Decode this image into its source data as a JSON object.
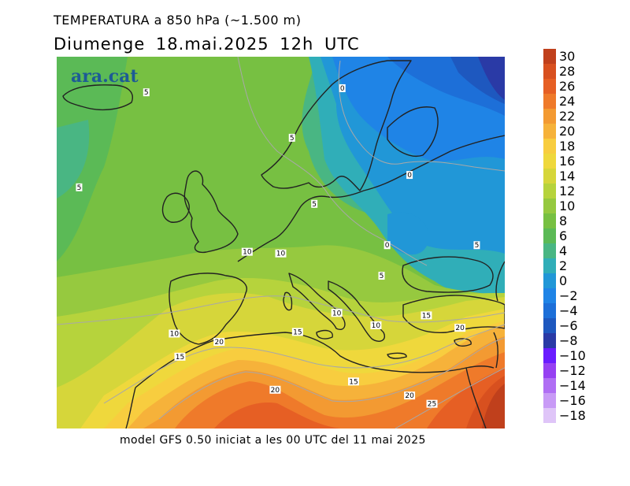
{
  "header": {
    "title": "TEMPERATURA a 850 hPa (~1.500 m)",
    "subtitle": "Diumenge  18.mai.2025  12h UTC"
  },
  "footer": {
    "text": "model GFS 0.50 iniciat a les 00 UTC del 11 mai 2025"
  },
  "logo": {
    "text": "ara.cat"
  },
  "legend": {
    "steps": [
      {
        "label": "30",
        "color": "#c0401c"
      },
      {
        "label": "28",
        "color": "#d8501f"
      },
      {
        "label": "26",
        "color": "#e65f24"
      },
      {
        "label": "24",
        "color": "#ef7a2a"
      },
      {
        "label": "22",
        "color": "#f39a32"
      },
      {
        "label": "20",
        "color": "#f6b23a"
      },
      {
        "label": "18",
        "color": "#f8cd3f"
      },
      {
        "label": "16",
        "color": "#efd83c"
      },
      {
        "label": "14",
        "color": "#d6d63a"
      },
      {
        "label": "12",
        "color": "#b6d33c"
      },
      {
        "label": "10",
        "color": "#96c93f"
      },
      {
        "label": "8",
        "color": "#77c042"
      },
      {
        "label": "6",
        "color": "#5bba56"
      },
      {
        "label": "4",
        "color": "#49b683"
      },
      {
        "label": "2",
        "color": "#30aeb8"
      },
      {
        "label": "0",
        "color": "#2197d7"
      },
      {
        "label": "−2",
        "color": "#1f84e6"
      },
      {
        "label": "−4",
        "color": "#1d6fd8"
      },
      {
        "label": "−6",
        "color": "#1e58bf"
      },
      {
        "label": "−8",
        "color": "#2a3aa6"
      },
      {
        "label": "−10",
        "color": "#6a1cff"
      },
      {
        "label": "−12",
        "color": "#9640f2"
      },
      {
        "label": "−14",
        "color": "#b06ef4"
      },
      {
        "label": "−16",
        "color": "#c89af6"
      },
      {
        "label": "−18",
        "color": "#dfc5f8"
      }
    ]
  },
  "map": {
    "contour_labels": [
      {
        "text": "0",
        "lon": 17,
        "lat": 65
      },
      {
        "text": "5",
        "lon": -18,
        "lat": 64.5
      },
      {
        "text": "5",
        "lon": 8,
        "lat": 59
      },
      {
        "text": "0",
        "lon": 29,
        "lat": 54.5
      },
      {
        "text": "5",
        "lon": -30,
        "lat": 53
      },
      {
        "text": "5",
        "lon": 12,
        "lat": 51
      },
      {
        "text": "0",
        "lon": 25,
        "lat": 46
      },
      {
        "text": "5",
        "lon": 41,
        "lat": 46
      },
      {
        "text": "10",
        "lon": 0,
        "lat": 45.2
      },
      {
        "text": "10",
        "lon": 6,
        "lat": 45
      },
      {
        "text": "5",
        "lon": 24,
        "lat": 42.3
      },
      {
        "text": "10",
        "lon": 16,
        "lat": 37.8
      },
      {
        "text": "15",
        "lon": 32,
        "lat": 37.5
      },
      {
        "text": "10",
        "lon": 23,
        "lat": 36.3
      },
      {
        "text": "20",
        "lon": 38,
        "lat": 36
      },
      {
        "text": "10",
        "lon": -13,
        "lat": 35.3
      },
      {
        "text": "15",
        "lon": 9,
        "lat": 35.5
      },
      {
        "text": "20",
        "lon": -5,
        "lat": 34.3
      },
      {
        "text": "15",
        "lon": -12,
        "lat": 32.5
      },
      {
        "text": "15",
        "lon": 19,
        "lat": 29.5
      },
      {
        "text": "20",
        "lon": 5,
        "lat": 28.5
      },
      {
        "text": "20",
        "lon": 29,
        "lat": 27.8
      },
      {
        "text": "25",
        "lon": 33,
        "lat": 26.8
      }
    ]
  }
}
